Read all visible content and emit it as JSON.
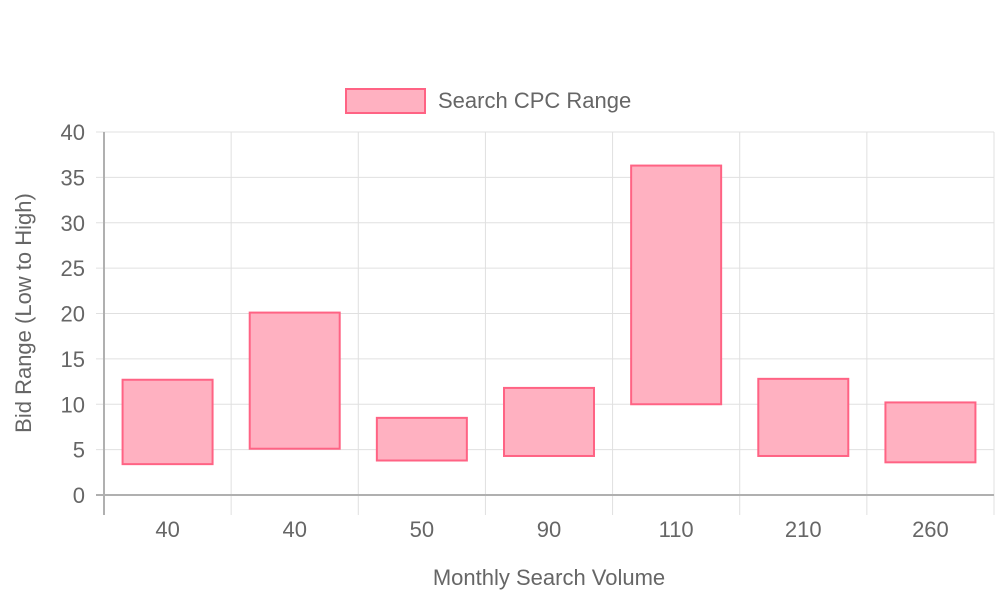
{
  "chart_data": {
    "type": "bar",
    "subtype": "floating-range",
    "categories": [
      "40",
      "40",
      "50",
      "90",
      "110",
      "210",
      "260"
    ],
    "series": [
      {
        "name": "Search CPC Range",
        "ranges": [
          [
            3.4,
            12.7
          ],
          [
            5.1,
            20.1
          ],
          [
            3.8,
            8.5
          ],
          [
            4.3,
            11.8
          ],
          [
            10.0,
            36.3
          ],
          [
            4.3,
            12.8
          ],
          [
            3.6,
            10.2
          ]
        ]
      }
    ],
    "xlabel": "Monthly Search Volume",
    "ylabel": "Bid Range (Low to High)",
    "ylim": [
      0,
      40
    ],
    "yticks": [
      "0",
      "5",
      "10",
      "15",
      "20",
      "25",
      "30",
      "35",
      "40"
    ],
    "grid": true,
    "legend_position": "top-center",
    "colors": {
      "bar_fill": "#ffb1c1",
      "bar_stroke": "#ff6384",
      "grid": "#e0e0e0",
      "axis": "#b0b0b0",
      "text": "#666666"
    }
  }
}
